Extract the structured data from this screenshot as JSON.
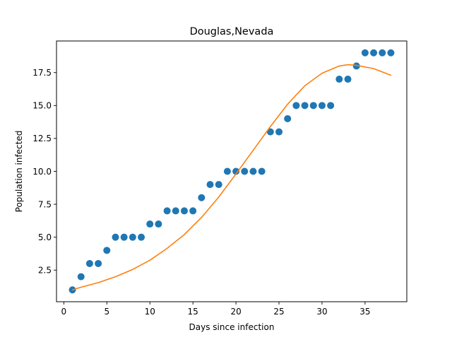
{
  "chart_data": {
    "type": "scatter",
    "title": "Douglas,Nevada",
    "xlabel": "Days since infection",
    "ylabel": "Population infected",
    "xlim": [
      -0.85,
      39.85
    ],
    "ylim": [
      0.1,
      19.9
    ],
    "xticks": [
      0,
      5,
      10,
      15,
      20,
      25,
      30,
      35
    ],
    "xtick_labels": [
      "0",
      "5",
      "10",
      "15",
      "20",
      "25",
      "30",
      "35"
    ],
    "yticks": [
      2.5,
      5.0,
      7.5,
      10.0,
      12.5,
      15.0,
      17.5
    ],
    "ytick_labels": [
      "2.5",
      "5.0",
      "7.5",
      "10.0",
      "12.5",
      "15.0",
      "17.5"
    ],
    "grid": false,
    "series": [
      {
        "kind": "scatter",
        "color": "#1f77b4",
        "x": [
          1,
          2,
          3,
          4,
          5,
          6,
          7,
          8,
          9,
          10,
          11,
          12,
          13,
          14,
          15,
          16,
          17,
          18,
          19,
          20,
          21,
          22,
          23,
          24,
          25,
          26,
          27,
          28,
          29,
          30,
          31,
          32,
          33,
          34,
          35,
          36,
          37,
          38
        ],
        "y": [
          1,
          2,
          3,
          3,
          4,
          5,
          5,
          5,
          5,
          6,
          6,
          7,
          7,
          7,
          7,
          8,
          9,
          9,
          10,
          10,
          10,
          10,
          10,
          13,
          13,
          14,
          15,
          15,
          15,
          15,
          15,
          17,
          17,
          18,
          19,
          19,
          19,
          19
        ]
      },
      {
        "kind": "line",
        "color": "#ff7f0e",
        "x": [
          1,
          2,
          4,
          6,
          8,
          10,
          12,
          14,
          16,
          18,
          20,
          22,
          24,
          26,
          28,
          30,
          32,
          33,
          34,
          36,
          38
        ],
        "y": [
          1.0,
          1.2,
          1.55,
          2.0,
          2.55,
          3.25,
          4.15,
          5.2,
          6.5,
          8.05,
          9.8,
          11.6,
          13.4,
          15.1,
          16.5,
          17.45,
          18.0,
          18.1,
          18.05,
          17.8,
          17.3
        ]
      }
    ]
  }
}
